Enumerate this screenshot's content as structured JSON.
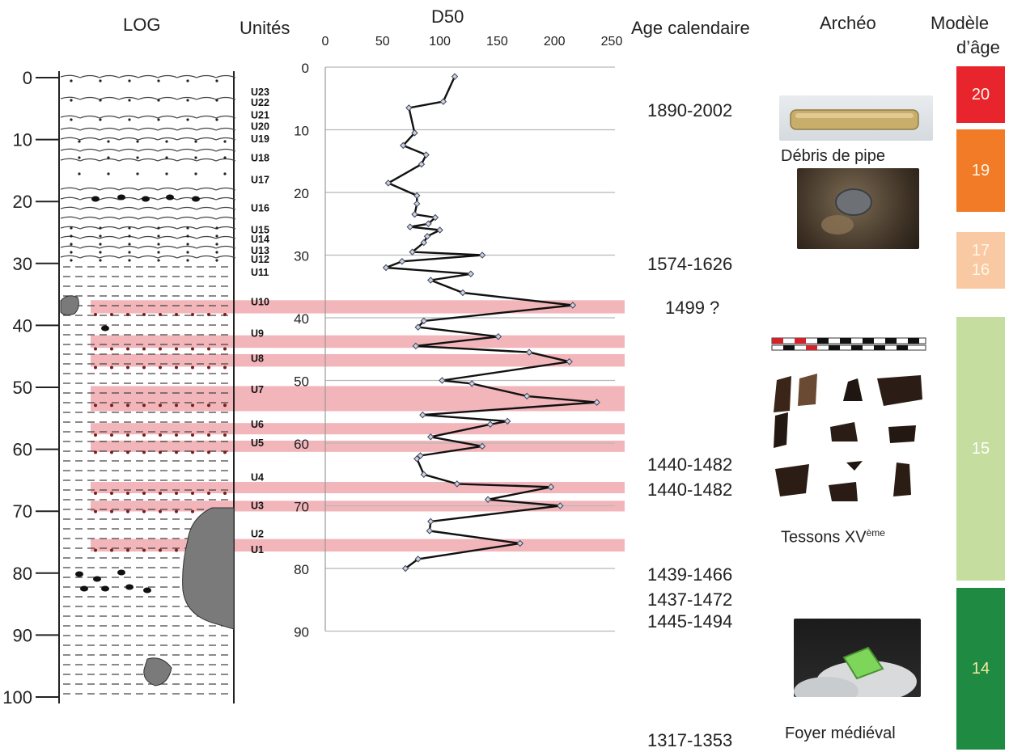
{
  "headers": {
    "log": "LOG",
    "units": "Unités",
    "d50": "D50",
    "age": "Age calendaire",
    "archeo": "Archéo",
    "model_line1": "Modèle",
    "model_line2": "d’âge"
  },
  "log": {
    "depth_ticks": [
      "0",
      "10",
      "20",
      "30",
      "40",
      "50",
      "60",
      "70",
      "80",
      "90",
      "100"
    ],
    "units": [
      {
        "label": "U23",
        "depth": 4
      },
      {
        "label": "U22",
        "depth": 5.7
      },
      {
        "label": "U21",
        "depth": 7.7
      },
      {
        "label": "U20",
        "depth": 9.5
      },
      {
        "label": "U19",
        "depth": 11.5
      },
      {
        "label": "U18",
        "depth": 14.5
      },
      {
        "label": "U17",
        "depth": 18
      },
      {
        "label": "U16",
        "depth": 22.5
      },
      {
        "label": "U15",
        "depth": 26
      },
      {
        "label": "U14",
        "depth": 27.5
      },
      {
        "label": "U13",
        "depth": 29.3
      },
      {
        "label": "U12",
        "depth": 30.7
      },
      {
        "label": "U11",
        "depth": 32.8
      },
      {
        "label": "U10",
        "depth": 37.5
      },
      {
        "label": "U9",
        "depth": 42.5
      },
      {
        "label": "U8",
        "depth": 46.5
      },
      {
        "label": "U7",
        "depth": 51.5
      },
      {
        "label": "U6",
        "depth": 57
      },
      {
        "label": "U5",
        "depth": 60
      },
      {
        "label": "U4",
        "depth": 65.5
      },
      {
        "label": "U3",
        "depth": 70
      },
      {
        "label": "U2",
        "depth": 74.5
      },
      {
        "label": "U1",
        "depth": 77
      }
    ]
  },
  "chart_data": {
    "type": "line",
    "title": "D50",
    "xlabel": "",
    "ylabel": "",
    "x_axis_position": "top",
    "y_inverted": true,
    "xlim": [
      0,
      250
    ],
    "ylim": [
      0,
      90
    ],
    "x_ticks": [
      "0",
      "50",
      "100",
      "150",
      "200",
      "250"
    ],
    "y_ticks": [
      "0",
      "10",
      "20",
      "30",
      "40",
      "50",
      "60",
      "70",
      "80",
      "90"
    ],
    "grid": "horizontal",
    "series": [
      {
        "color": "#111111",
        "points": [
          [
            113,
            1.5
          ],
          [
            103,
            5.5
          ],
          [
            73,
            6.5
          ],
          [
            78,
            10.5
          ],
          [
            68,
            12.5
          ],
          [
            88,
            14
          ],
          [
            84,
            15.5
          ],
          [
            55,
            18.5
          ],
          [
            80,
            20.5
          ],
          [
            80,
            21.8
          ],
          [
            78,
            23.5
          ],
          [
            96,
            24
          ],
          [
            90,
            25
          ],
          [
            74,
            25.5
          ],
          [
            100,
            26
          ],
          [
            89,
            27
          ],
          [
            86,
            28
          ],
          [
            76,
            29.5
          ],
          [
            137,
            30
          ],
          [
            67,
            31
          ],
          [
            53,
            32
          ],
          [
            127,
            33
          ],
          [
            92,
            34
          ],
          [
            120,
            36
          ],
          [
            216,
            38
          ],
          [
            86,
            40.5
          ],
          [
            81,
            41.5
          ],
          [
            151,
            43
          ],
          [
            79,
            44.5
          ],
          [
            178,
            45.5
          ],
          [
            213,
            47
          ],
          [
            102,
            50
          ],
          [
            128,
            50.5
          ],
          [
            176,
            52.5
          ],
          [
            237,
            53.5
          ],
          [
            85,
            55.5
          ],
          [
            159,
            56.5
          ],
          [
            144,
            57
          ],
          [
            92,
            59
          ],
          [
            137,
            60.5
          ],
          [
            83,
            62
          ],
          [
            80,
            62.5
          ],
          [
            86,
            65
          ],
          [
            115,
            66.5
          ],
          [
            197,
            67
          ],
          [
            142,
            69
          ],
          [
            205,
            70
          ],
          [
            92,
            72.5
          ],
          [
            91,
            74
          ],
          [
            170,
            76
          ],
          [
            81,
            78.5
          ],
          [
            70,
            80
          ]
        ]
      }
    ],
    "highlight_bands": [
      {
        "from": 37.2,
        "to": 39.3
      },
      {
        "from": 42.8,
        "to": 44.8
      },
      {
        "from": 45.8,
        "to": 47.8
      },
      {
        "from": 50.9,
        "to": 54.9
      },
      {
        "from": 56.8,
        "to": 58.6
      },
      {
        "from": 59.6,
        "to": 61.4
      },
      {
        "from": 66.2,
        "to": 68.0
      },
      {
        "from": 69.2,
        "to": 70.9
      },
      {
        "from": 75.3,
        "to": 77.3
      }
    ]
  },
  "ages": [
    {
      "text": "1890-2002",
      "depth": 7
    },
    {
      "text": "1574-1626",
      "depth": 31.5
    },
    {
      "text": "1499 ?",
      "depth": 38.5
    },
    {
      "text": "1440-1482",
      "depth": 63.5
    },
    {
      "text": "1440-1482",
      "depth": 67.5
    },
    {
      "text": "1439-1466",
      "depth": 81
    },
    {
      "text": "1437-1472",
      "depth": 85
    },
    {
      "text": "1445-1494",
      "depth": 88.5
    },
    {
      "text": "1317-1353",
      "depth": 107.5
    }
  ],
  "archeo": {
    "pipe_caption": "Débris de pipe",
    "sherds_caption": "Tessons XV",
    "sherds_caption_sup": "ème",
    "hearth_caption": "Foyer médiéval"
  },
  "age_model": [
    {
      "label": "20",
      "color": "#e8242d"
    },
    {
      "label": "19",
      "color": "#f27b27"
    },
    {
      "label": "17\n16",
      "color": "#f9c9a4"
    },
    {
      "label": "15",
      "color": "#c5dd9f"
    },
    {
      "label": "14",
      "color": "#1f8a42"
    }
  ],
  "colors": {
    "band": "#f2b5ba",
    "grid": "#b8b8b8",
    "line": "#111111",
    "marker_fill": "#c7d4e6"
  }
}
